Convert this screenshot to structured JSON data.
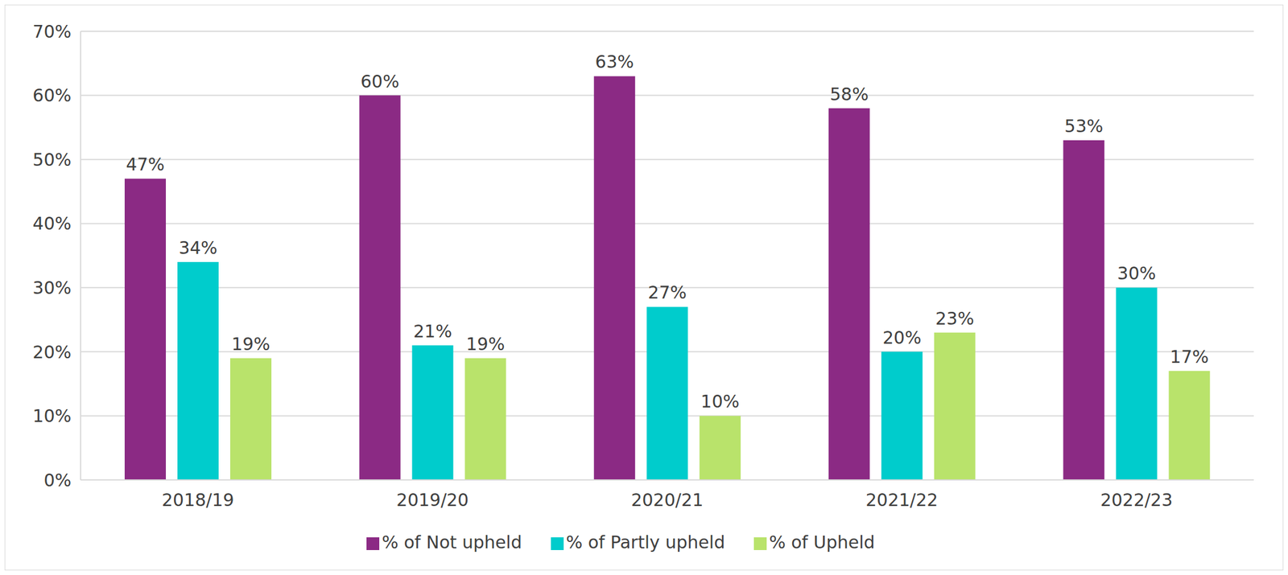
{
  "chart_data": {
    "type": "bar",
    "categories": [
      "2018/19",
      "2019/20",
      "2020/21",
      "2021/22",
      "2022/23"
    ],
    "series": [
      {
        "name": "% of Not upheld",
        "color": "#8b2a84",
        "values": [
          47,
          60,
          63,
          58,
          53
        ],
        "value_labels": [
          "47%",
          "60%",
          "63%",
          "58%",
          "53%"
        ]
      },
      {
        "name": "% of Partly upheld",
        "color": "#00cccc",
        "values": [
          34,
          21,
          27,
          20,
          30
        ],
        "value_labels": [
          "34%",
          "21%",
          "27%",
          "20%",
          "30%"
        ]
      },
      {
        "name": "% of Upheld",
        "color": "#b9e36b",
        "values": [
          19,
          19,
          10,
          23,
          17
        ],
        "value_labels": [
          "19%",
          "19%",
          "10%",
          "23%",
          "17%"
        ]
      }
    ],
    "ylim": [
      0,
      70
    ],
    "yticks": [
      {
        "value": 0,
        "label": "0%"
      },
      {
        "value": 10,
        "label": "10%"
      },
      {
        "value": 20,
        "label": "20%"
      },
      {
        "value": 30,
        "label": "30%"
      },
      {
        "value": 40,
        "label": "40%"
      },
      {
        "value": 50,
        "label": "50%"
      },
      {
        "value": 60,
        "label": "60%"
      },
      {
        "value": 70,
        "label": "70%"
      }
    ],
    "grid": true,
    "legend": "bottom",
    "data_labels": true
  }
}
